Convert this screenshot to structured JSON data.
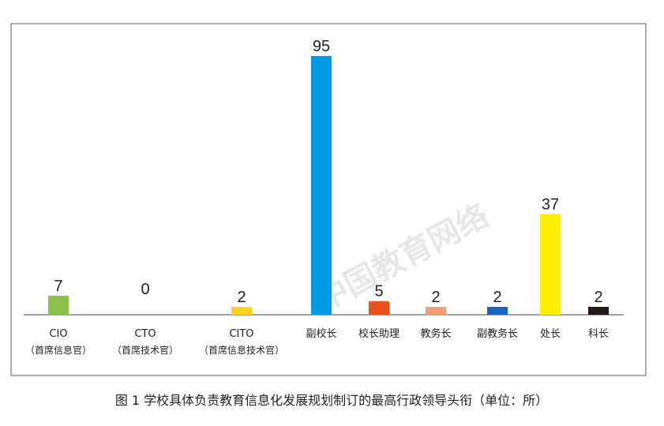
{
  "chart_data": {
    "type": "bar",
    "title": "图 1  学校具体负责教育信息化发展规划制订的最高行政领导头衔（单位：所）",
    "categories": [
      "CIO",
      "CTO",
      "CITO",
      "副校长",
      "校长助理",
      "教务长",
      "副教务长",
      "处长",
      "科长"
    ],
    "category_sublabels": [
      "（首席信息官）",
      "（首席技术官）",
      "（首席信息技术官）",
      "",
      "",
      "",
      "",
      "",
      ""
    ],
    "values": [
      7,
      0,
      2,
      95,
      5,
      2,
      2,
      37,
      2
    ],
    "colors": [
      "#8bc34a",
      "#cccccc",
      "#ffd21f",
      "#0099e6",
      "#e8521a",
      "#f0a070",
      "#1565c0",
      "#ffee00",
      "#231815"
    ],
    "ylim": [
      0,
      95
    ],
    "grid": false,
    "legend": "none"
  },
  "watermark": "中国教育网络"
}
